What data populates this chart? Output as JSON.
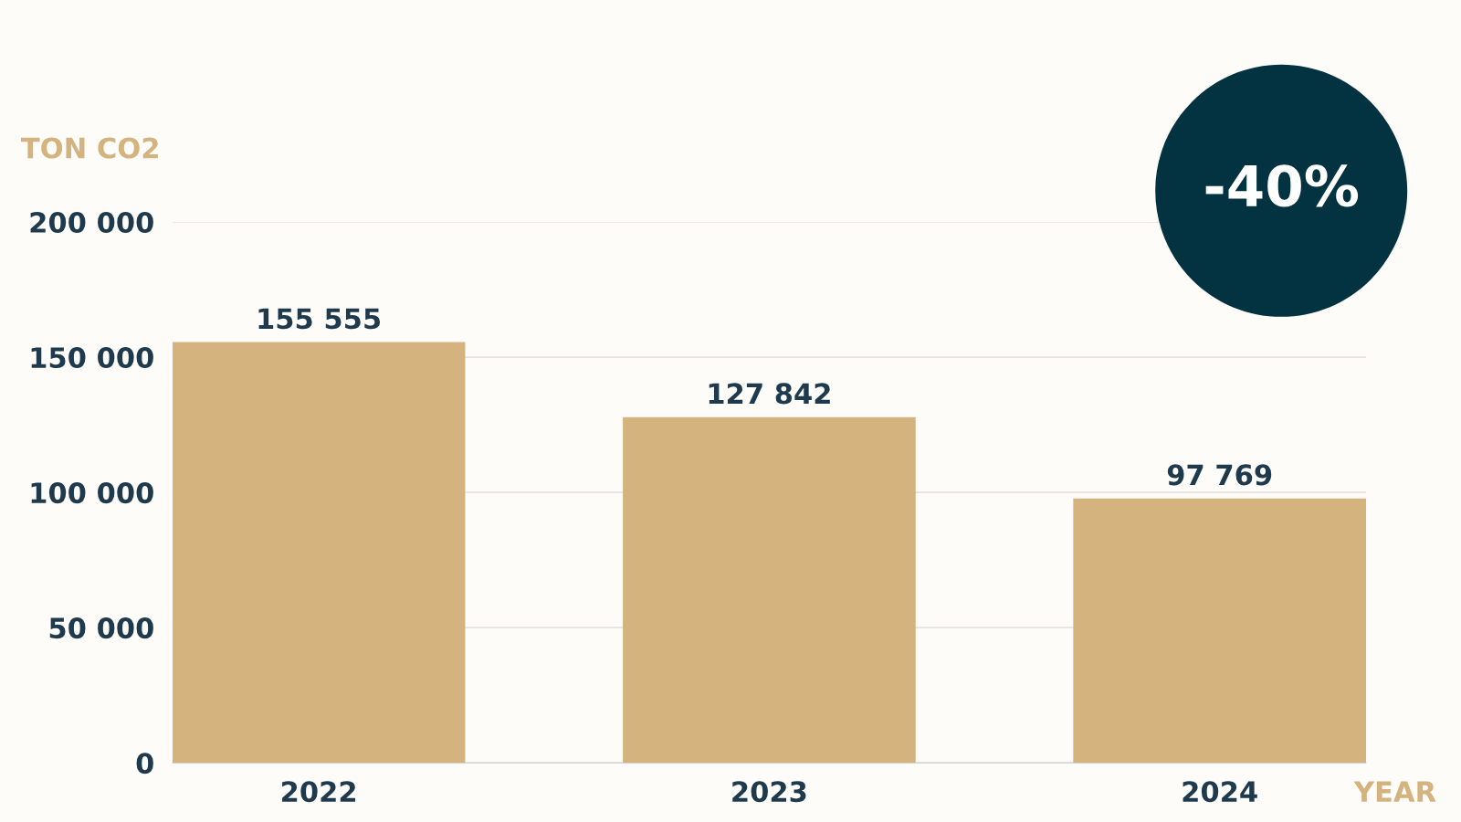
{
  "chart_data": {
    "type": "bar",
    "ylabel": "TON CO2",
    "xlabel": "YEAR",
    "categories": [
      "2022",
      "2023",
      "2024"
    ],
    "values": [
      155555,
      127842,
      97769
    ],
    "value_labels": [
      "155 555",
      "127 842",
      "97 769"
    ],
    "color": "#d4b37f",
    "ylim": [
      0,
      200000
    ],
    "yticks": [
      {
        "value": 0,
        "label": "0"
      },
      {
        "value": 50000,
        "label": "50 000"
      },
      {
        "value": 100000,
        "label": "100 000"
      },
      {
        "value": 150000,
        "label": "150 000"
      },
      {
        "value": 200000,
        "label": "200 000"
      }
    ],
    "grid": "y",
    "annotations": [
      "-40%"
    ]
  }
}
